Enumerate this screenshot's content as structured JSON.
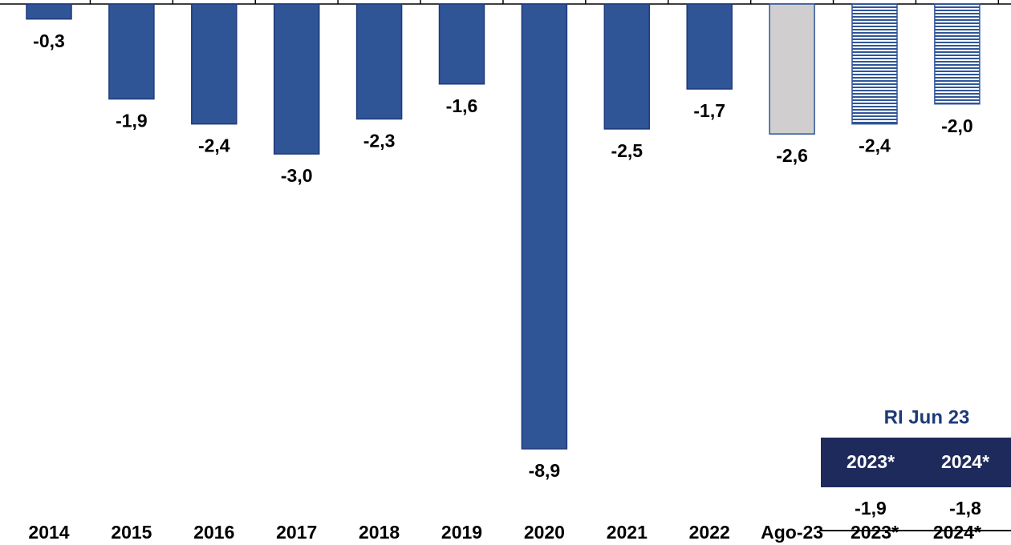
{
  "chart_data": {
    "type": "bar",
    "categories": [
      "2014",
      "2015",
      "2016",
      "2017",
      "2018",
      "2019",
      "2020",
      "2021",
      "2022",
      "Ago-23",
      "2023*",
      "2024*"
    ],
    "values": [
      -0.3,
      -1.9,
      -2.4,
      -3.0,
      -2.3,
      -1.6,
      -8.9,
      -2.5,
      -1.7,
      -2.6,
      -2.4,
      -2.0
    ],
    "value_labels": [
      "-0,3",
      "-1,9",
      "-2,4",
      "-3,0",
      "-2,3",
      "-1,6",
      "-8,9",
      "-2,5",
      "-1,7",
      "-2,6",
      "-2,4",
      "-2,0"
    ],
    "colors": [
      "#2f5597",
      "#2f5597",
      "#2f5597",
      "#2f5597",
      "#2f5597",
      "#2f5597",
      "#2f5597",
      "#2f5597",
      "#2f5597",
      "#d0cece",
      "#2f5597",
      "#2f5597"
    ],
    "hatched": [
      false,
      false,
      false,
      false,
      false,
      false,
      false,
      false,
      false,
      false,
      true,
      true
    ],
    "inset": {
      "title": "RI Jun 23",
      "headers": [
        "2023*",
        "2024*"
      ],
      "cells": [
        "-1,9",
        "-1,8"
      ]
    }
  }
}
